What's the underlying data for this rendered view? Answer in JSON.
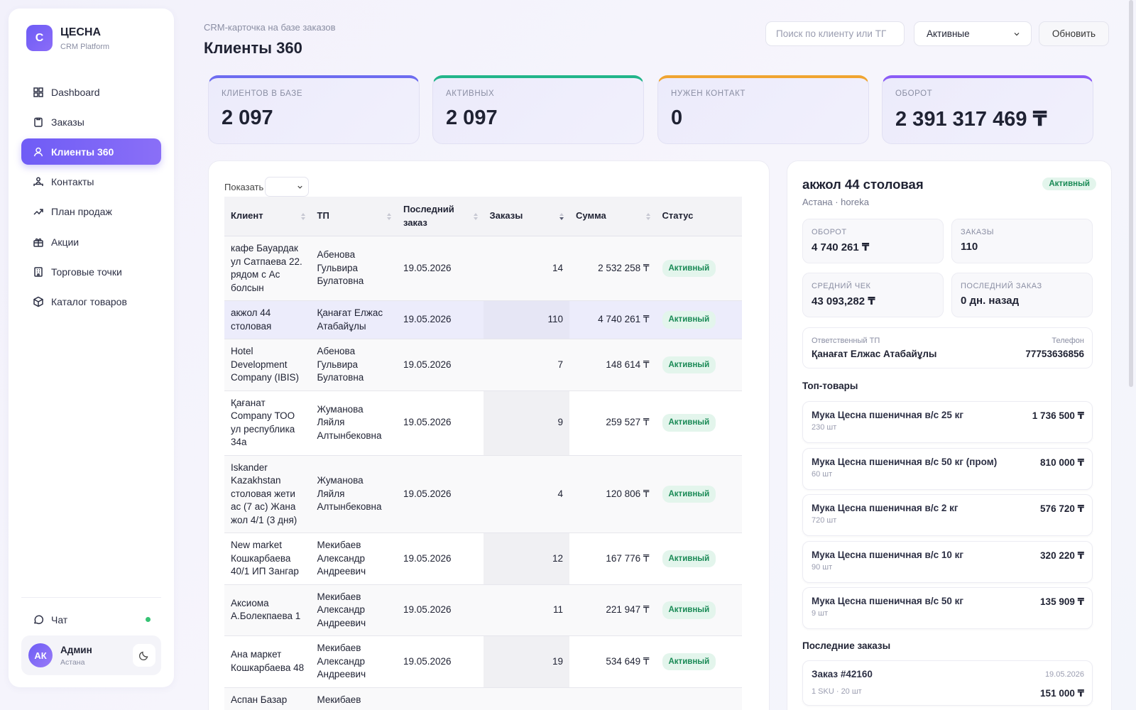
{
  "sidebar": {
    "logo_letter": "С",
    "brand": "ЦЕСНА",
    "brand_sub": "CRM Platform",
    "nav": [
      "Dashboard",
      "Заказы",
      "Клиенты 360",
      "Контакты",
      "План продаж",
      "Акции",
      "Торговые точки",
      "Каталог товаров"
    ],
    "active_index": 2,
    "chat": "Чат",
    "user": {
      "initials": "АК",
      "name": "Админ",
      "city": "Астана"
    }
  },
  "header": {
    "subtitle": "CRM-карточка на базе заказов",
    "title": "Клиенты 360",
    "search_placeholder": "Поиск по клиенту или ТГ",
    "filter": "Активные",
    "button": "Обновить"
  },
  "kpis": [
    {
      "label": "КЛИЕНТОВ В БАЗЕ",
      "value": "2 097",
      "color": "#6d6cf0"
    },
    {
      "label": "АКТИВНЫХ",
      "value": "2 097",
      "color": "#22b58a"
    },
    {
      "label": "НУЖЕН КОНТАКТ",
      "value": "0",
      "color": "#f0a531"
    },
    {
      "label": "ОБОРОТ",
      "value": "2 391 317 469 ₸",
      "color": "#8b5cf6"
    }
  ],
  "table": {
    "show_label": "Показать",
    "columns": [
      "Клиент",
      "ТП",
      "Последний заказ",
      "Заказы",
      "Сумма",
      "Статус"
    ],
    "selected_row": 1,
    "rows": [
      [
        "кафе Бауардак ул Сатпаева 22. рядом с Ас болсын",
        "Абенова Гульвира Булатовна",
        "19.05.2026",
        "14",
        "2 532 258 ₸",
        "Активный"
      ],
      [
        "акжол 44 столовая",
        "Қанағат Елжас Атабайұлы",
        "19.05.2026",
        "110",
        "4 740 261 ₸",
        "Активный"
      ],
      [
        "Hotel Development Company (IBIS)",
        "Абенова Гульвира Булатовна",
        "19.05.2026",
        "7",
        "148 614 ₸",
        "Активный"
      ],
      [
        "Қағанат Company ТОО ул республика 34а",
        "Жуманова Ляйля Алтынбековна",
        "19.05.2026",
        "9",
        "259 527 ₸",
        "Активный"
      ],
      [
        "Iskander Kazakhstan столовая жети ас (7 ас) Жана жол 4/1 (3 дня)",
        "Жуманова Ляйля Алтынбековна",
        "19.05.2026",
        "4",
        "120 806 ₸",
        "Активный"
      ],
      [
        "New market Кошкарбаева 40/1 ИП Зангар",
        "Мекибаев Александр Андреевич",
        "19.05.2026",
        "12",
        "167 776 ₸",
        "Активный"
      ],
      [
        "Аксиома А.Болекпаева 1",
        "Мекибаев Александр Андреевич",
        "19.05.2026",
        "11",
        "221 947 ₸",
        "Активный"
      ],
      [
        "Ана маркет Кошкарбаева 48",
        "Мекибаев Александр Андреевич",
        "19.05.2026",
        "19",
        "534 649 ₸",
        "Активный"
      ],
      [
        "Аспан Базар",
        "Мекибаев",
        "",
        "",
        "",
        ""
      ]
    ]
  },
  "detail": {
    "name": "акжол 44 столовая",
    "badge": "Активный",
    "location": "Астана · horeka",
    "stats": [
      {
        "label": "ОБОРОТ",
        "value": "4 740 261 ₸"
      },
      {
        "label": "ЗАКАЗЫ",
        "value": "110"
      },
      {
        "label": "СРЕДНИЙ ЧЕК",
        "value": "43 093,282 ₸"
      },
      {
        "label": "ПОСЛЕДНИЙ ЗАКАЗ",
        "value": "0 дн. назад"
      }
    ],
    "tp_label": "Ответственный ТП",
    "tp": "Қанағат Елжас Атабайұлы",
    "phone_label": "Телефон",
    "phone": "77753636856",
    "top_title": "Топ-товары",
    "products": [
      {
        "name": "Мука Цесна пшеничная в/с 25 кг",
        "qty": "230 шт",
        "sum": "1 736 500 ₸"
      },
      {
        "name": "Мука Цесна пшеничная в/с 50 кг (пром)",
        "qty": "60 шт",
        "sum": "810 000 ₸"
      },
      {
        "name": "Мука Цесна пшеничная в/с 2 кг",
        "qty": "720 шт",
        "sum": "576 720 ₸"
      },
      {
        "name": "Мука Цесна пшеничная в/с 10 кг",
        "qty": "90 шт",
        "sum": "320 220 ₸"
      },
      {
        "name": "Мука Цесна пшеничная в/с 50 кг",
        "qty": "9 шт",
        "sum": "135 909 ₸"
      }
    ],
    "orders_title": "Последние заказы",
    "orders": [
      {
        "title": "Заказ #42160",
        "date": "19.05.2026",
        "meta": "1 SKU · 20 шт",
        "sum": "151 000 ₸"
      }
    ]
  }
}
